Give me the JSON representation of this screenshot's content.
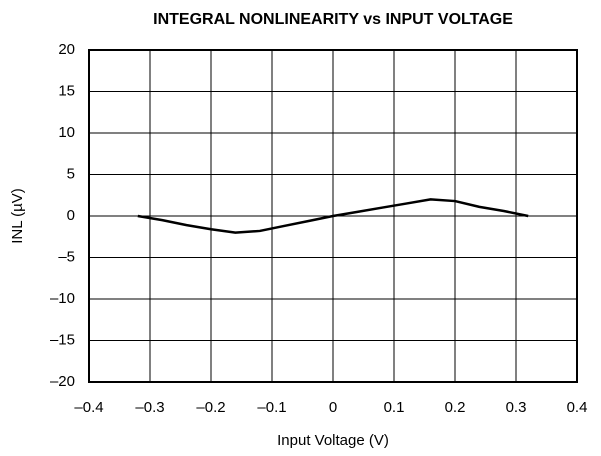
{
  "chart_data": {
    "type": "line",
    "title": "INTEGRAL NONLINEARITY vs INPUT VOLTAGE",
    "xlabel": "Input Voltage (V)",
    "ylabel": "INL (µV)",
    "x": [
      -0.32,
      -0.28,
      -0.24,
      -0.2,
      -0.16,
      -0.12,
      -0.08,
      -0.04,
      0,
      0.04,
      0.08,
      0.12,
      0.16,
      0.2,
      0.24,
      0.28,
      0.32
    ],
    "values": [
      0,
      -0.5,
      -1.1,
      -1.6,
      -2,
      -1.8,
      -1.2,
      -0.6,
      0,
      0.5,
      1,
      1.5,
      2,
      1.8,
      1.1,
      0.6,
      0
    ],
    "color": "#000000",
    "xlim": [
      -0.4,
      0.4
    ],
    "ylim": [
      -20,
      20
    ],
    "xticks": [
      {
        "value": -0.4,
        "label": "–0.4"
      },
      {
        "value": -0.3,
        "label": "–0.3"
      },
      {
        "value": -0.2,
        "label": "–0.2"
      },
      {
        "value": -0.1,
        "label": "–0.1"
      },
      0,
      0.1,
      0.2,
      0.3,
      0.4
    ],
    "yticks": [
      {
        "value": -20,
        "label": "–20"
      },
      {
        "value": -15,
        "label": "–15"
      },
      {
        "value": -10,
        "label": "–10"
      },
      {
        "value": -5,
        "label": "–5"
      },
      0,
      5,
      10,
      15,
      20
    ],
    "grid": true
  }
}
